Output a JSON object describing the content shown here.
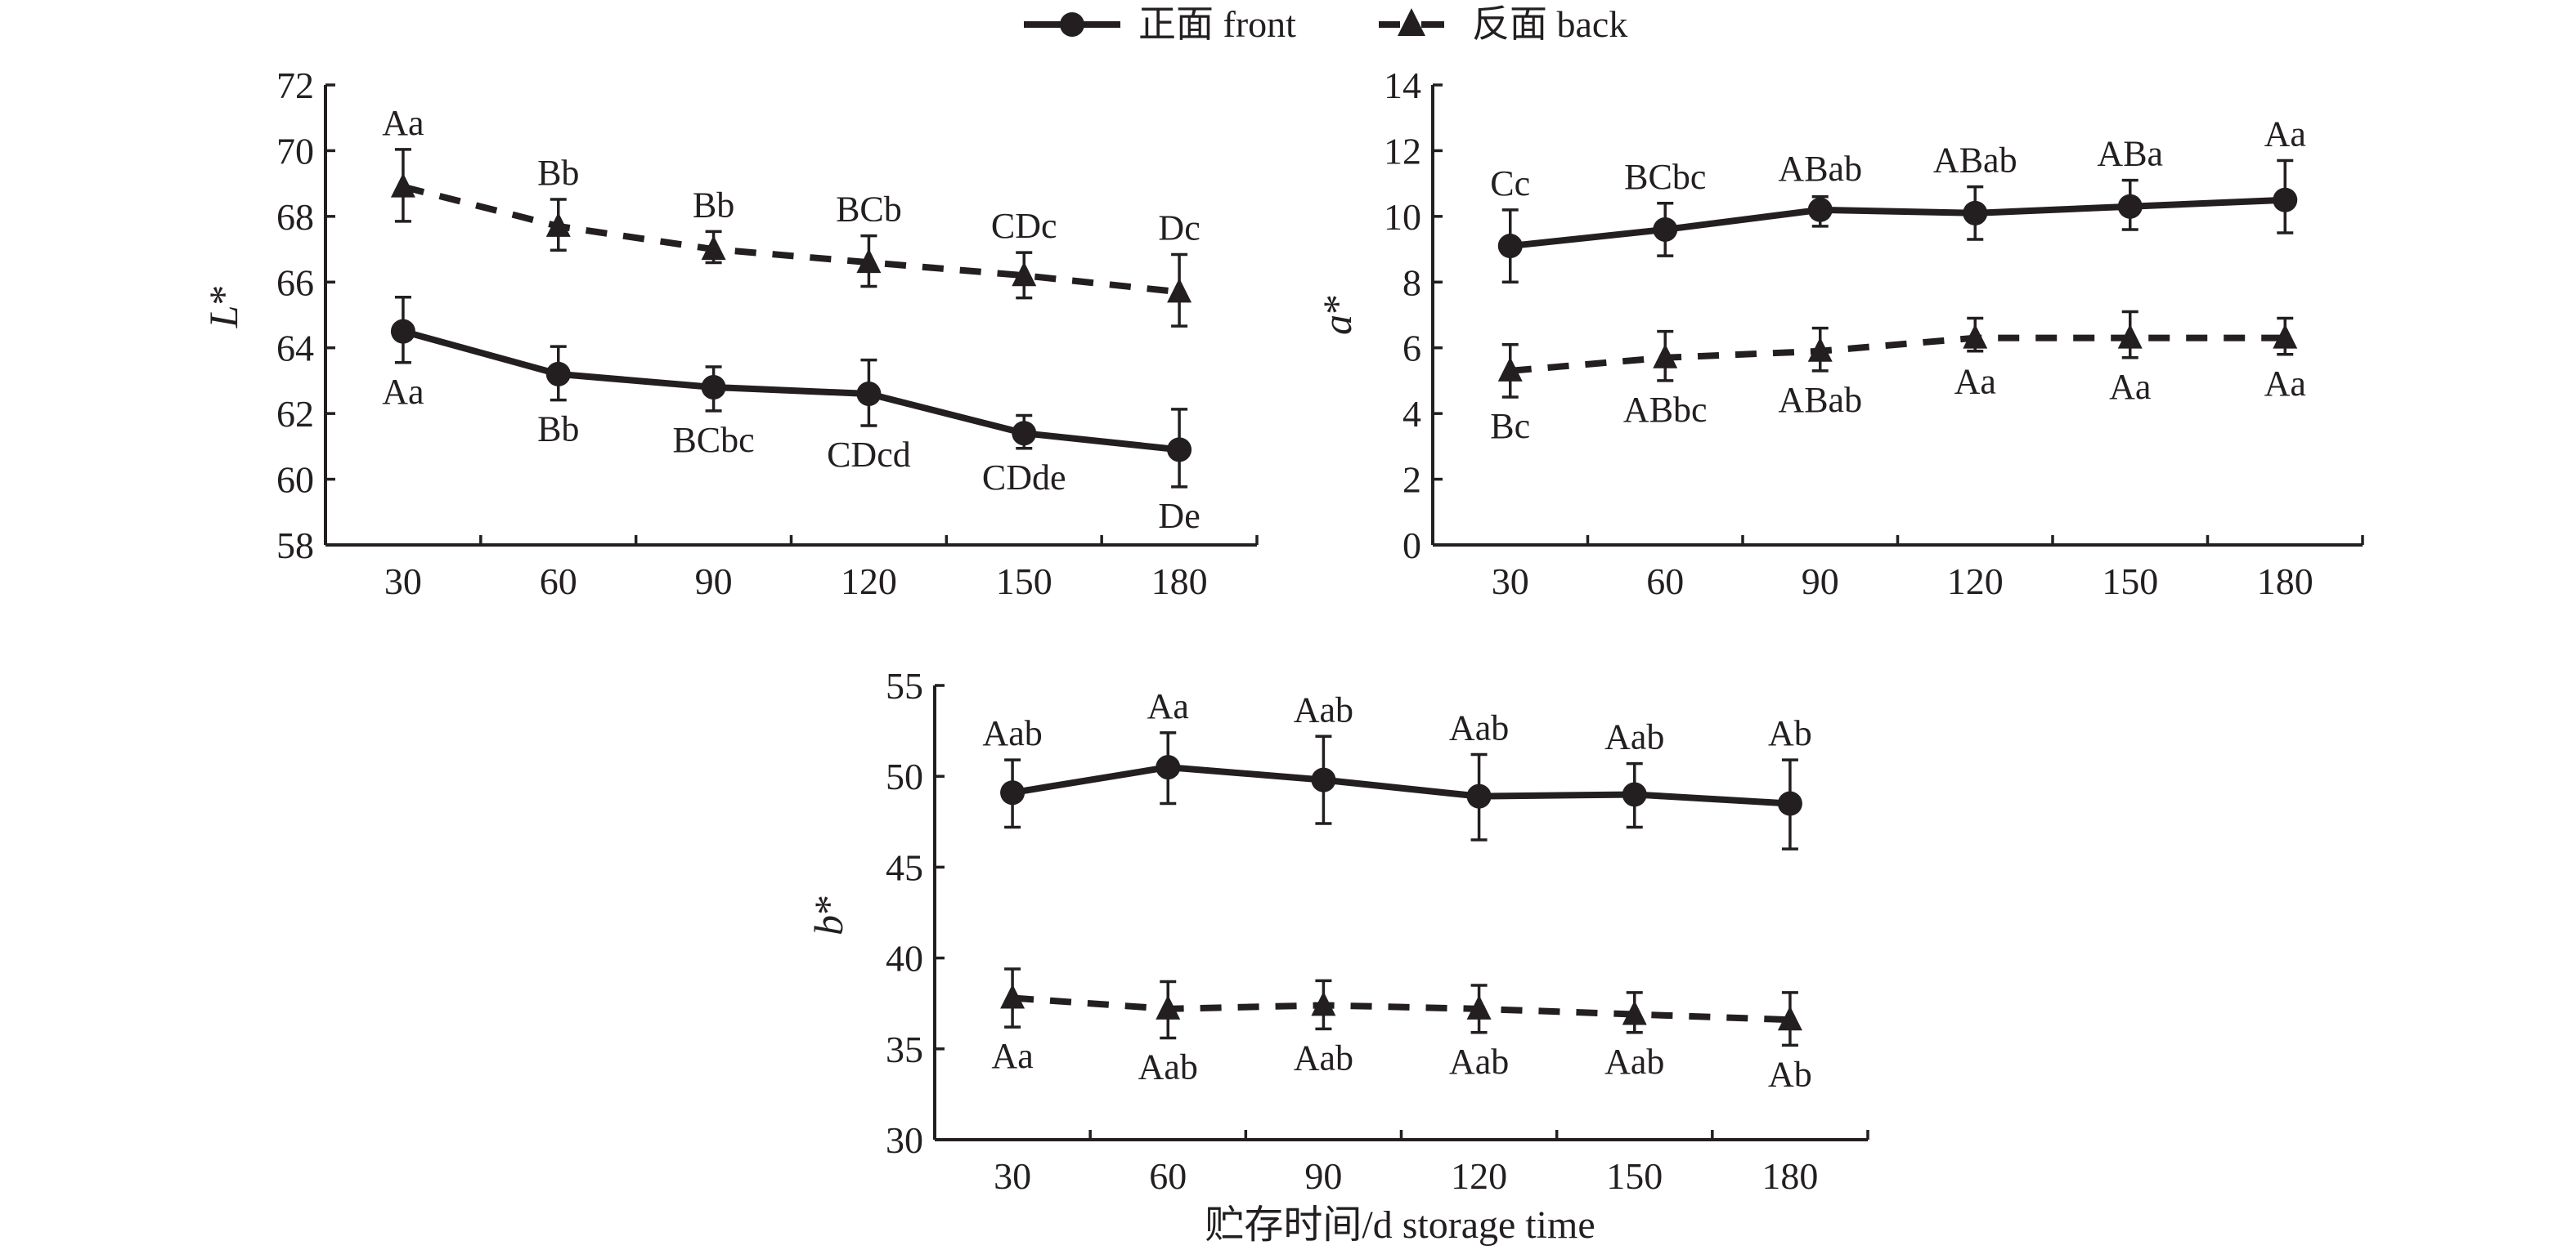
{
  "legend": {
    "items": [
      {
        "name": "front",
        "label": "正面 front",
        "marker": "circle",
        "line": "solid"
      },
      {
        "name": "back",
        "label": "反面 back",
        "marker": "triangle",
        "line": "dashed"
      }
    ]
  },
  "xlabel": "贮存时间/d storage time",
  "colors": {
    "ink": "#231f20",
    "background": "#ffffff"
  },
  "chart_data": [
    {
      "id": "L",
      "type": "line",
      "title": "",
      "ylabel": "L*",
      "ylabel_letter": "L",
      "xlabel": "",
      "categories": [
        "30",
        "60",
        "90",
        "120",
        "150",
        "180"
      ],
      "ylim": [
        58,
        72
      ],
      "yticks": [
        58,
        60,
        62,
        64,
        66,
        68,
        70,
        72
      ],
      "grid": false,
      "series": [
        {
          "name": "正面 front",
          "values": [
            64.5,
            63.2,
            62.8,
            62.6,
            61.4,
            60.9
          ],
          "err_low": [
            63.55,
            62.41,
            62.08,
            61.63,
            60.94,
            59.77
          ],
          "err_high": [
            65.54,
            64.04,
            63.42,
            63.63,
            61.94,
            62.13
          ],
          "labels": [
            "Aa",
            "Bb",
            "BCbc",
            "CDcd",
            "CDde",
            "De"
          ],
          "label_position": "below"
        },
        {
          "name": "反面 back",
          "values": [
            68.9,
            67.7,
            67.0,
            66.6,
            66.2,
            65.7
          ],
          "err_low": [
            67.85,
            66.97,
            66.59,
            65.87,
            65.52,
            64.66
          ],
          "err_high": [
            70.04,
            68.52,
            67.54,
            67.41,
            66.9,
            66.84
          ],
          "labels": [
            "Aa",
            "Bb",
            "Bb",
            "BCb",
            "CDc",
            "Dc"
          ],
          "label_position": "above"
        }
      ]
    },
    {
      "id": "a",
      "type": "line",
      "title": "",
      "ylabel": "a*",
      "ylabel_letter": "a",
      "xlabel": "",
      "categories": [
        "30",
        "60",
        "90",
        "120",
        "150",
        "180"
      ],
      "ylim": [
        0,
        14
      ],
      "yticks": [
        0,
        2,
        4,
        6,
        8,
        10,
        12,
        14
      ],
      "grid": false,
      "series": [
        {
          "name": "正面 front",
          "values": [
            9.1,
            9.6,
            10.2,
            10.1,
            10.3,
            10.5
          ],
          "err_low": [
            8.0,
            8.8,
            9.7,
            9.3,
            9.6,
            9.5
          ],
          "err_high": [
            10.2,
            10.4,
            10.6,
            10.9,
            11.1,
            11.7
          ],
          "labels": [
            "Cc",
            "BCbc",
            "ABab",
            "ABab",
            "ABa",
            "Aa"
          ],
          "label_position": "above"
        },
        {
          "name": "反面 back",
          "values": [
            5.3,
            5.7,
            5.9,
            6.3,
            6.3,
            6.3
          ],
          "err_low": [
            4.5,
            5.0,
            5.3,
            5.9,
            5.7,
            5.8
          ],
          "err_high": [
            6.1,
            6.5,
            6.6,
            6.9,
            7.1,
            6.9
          ],
          "labels": [
            "Bc",
            "ABbc",
            "ABab",
            "Aa",
            "Aa",
            "Aa"
          ],
          "label_position": "below"
        }
      ]
    },
    {
      "id": "b",
      "type": "line",
      "title": "",
      "ylabel": "b*",
      "ylabel_letter": "b",
      "xlabel": "贮存时间/d storage time",
      "categories": [
        "30",
        "60",
        "90",
        "120",
        "150",
        "180"
      ],
      "ylim": [
        30,
        55
      ],
      "yticks": [
        30,
        35,
        40,
        45,
        50,
        55
      ],
      "grid": false,
      "series": [
        {
          "name": "正面 front",
          "values": [
            49.1,
            50.5,
            49.8,
            48.9,
            49.0,
            48.5
          ],
          "err_low": [
            47.2,
            48.5,
            47.4,
            46.5,
            47.2,
            46.0
          ],
          "err_high": [
            50.9,
            52.4,
            52.2,
            51.2,
            50.7,
            50.9
          ],
          "labels": [
            "Aab",
            "Aa",
            "Aab",
            "Aab",
            "Aab",
            "Ab"
          ],
          "label_position": "above"
        },
        {
          "name": "反面 back",
          "values": [
            37.8,
            37.2,
            37.4,
            37.2,
            36.9,
            36.6
          ],
          "err_low": [
            36.2,
            35.6,
            36.1,
            35.9,
            35.9,
            35.2
          ],
          "err_high": [
            39.4,
            38.7,
            38.75,
            38.5,
            38.1,
            38.1
          ],
          "labels": [
            "Aa",
            "Aab",
            "Aab",
            "Aab",
            "Aab",
            "Ab"
          ],
          "label_position": "below"
        }
      ]
    }
  ]
}
